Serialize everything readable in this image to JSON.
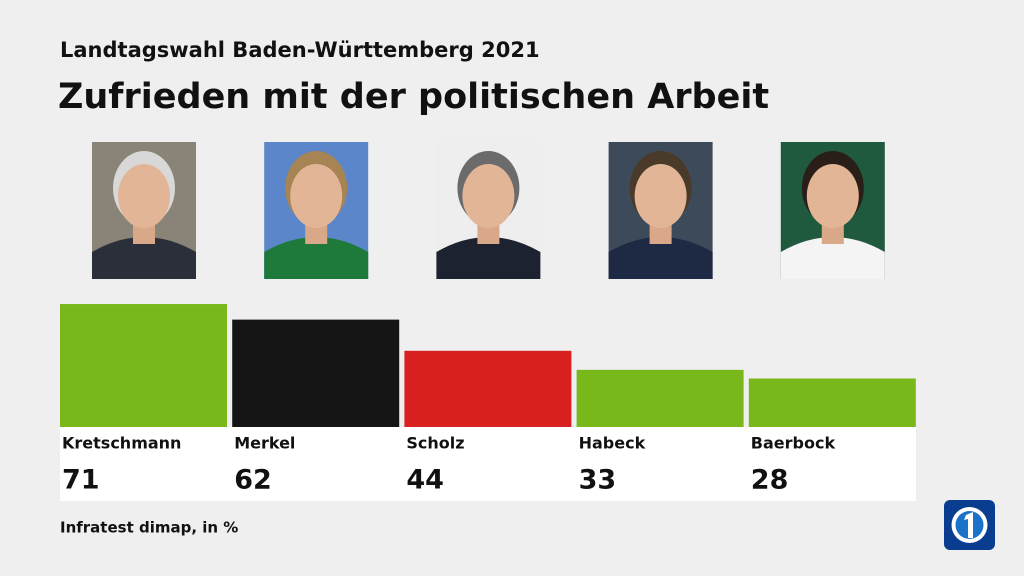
{
  "chart_data": {
    "type": "bar",
    "supertitle": "Landtagswahl Baden-Württemberg 2021",
    "title": "Zufrieden mit der politischen Arbeit",
    "categories": [
      "Kretschmann",
      "Merkel",
      "Scholz",
      "Habeck",
      "Baerbock"
    ],
    "values": [
      71,
      62,
      44,
      33,
      28
    ],
    "colors": [
      "#78b81a",
      "#151515",
      "#d92020",
      "#78b81a",
      "#78b81a"
    ],
    "source": "Infratest dimap, in %"
  }
}
